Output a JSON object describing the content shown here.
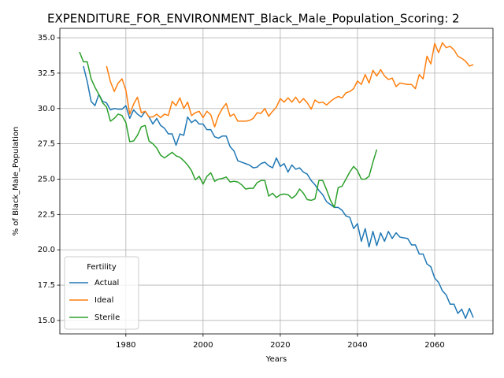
{
  "chart_data": {
    "type": "line",
    "title": "EXPENDITURE_FOR_ENVIRONMENT_Black_Male_Population_Scoring: 2",
    "x_label": "Years",
    "y_label": "% of Black_Male_Population",
    "legend_title": "Fertility",
    "legend": "lower left",
    "grid": true,
    "x": [
      1968,
      1969,
      1970,
      1971,
      1972,
      1973,
      1974,
      1975,
      1976,
      1977,
      1978,
      1979,
      1980,
      1981,
      1982,
      1983,
      1984,
      1985,
      1986,
      1987,
      1988,
      1989,
      1990,
      1991,
      1992,
      1993,
      1994,
      1995,
      1996,
      1997,
      1998,
      1999,
      2000,
      2001,
      2002,
      2003,
      2004,
      2005,
      2006,
      2007,
      2008,
      2009,
      2010,
      2011,
      2012,
      2013,
      2014,
      2015,
      2016,
      2017,
      2018,
      2019,
      2020,
      2021,
      2022,
      2023,
      2024,
      2025,
      2026,
      2027,
      2028,
      2029,
      2030,
      2031,
      2032,
      2033,
      2034,
      2035,
      2036,
      2037,
      2038,
      2039,
      2040,
      2041,
      2042,
      2043,
      2044,
      2045,
      2046,
      2047,
      2048,
      2049,
      2050,
      2051,
      2052,
      2053,
      2054,
      2055,
      2056,
      2057,
      2058,
      2059,
      2060,
      2061,
      2062,
      2063,
      2064,
      2065,
      2066,
      2067,
      2068,
      2069,
      2070
    ],
    "series": [
      {
        "name": "Actual",
        "color": "#1f77b4",
        "values": [
          null,
          33.0,
          31.9,
          30.5,
          30.2,
          31.0,
          30.5,
          30.4,
          29.9,
          30.0,
          29.95,
          29.95,
          30.2,
          29.3,
          29.9,
          29.6,
          29.4,
          29.8,
          29.4,
          28.9,
          29.3,
          28.8,
          28.6,
          28.2,
          28.2,
          27.4,
          28.2,
          28.1,
          29.4,
          29.0,
          29.2,
          28.9,
          28.9,
          28.5,
          28.5,
          28.0,
          27.9,
          28.05,
          28.05,
          27.3,
          27.0,
          26.3,
          26.2,
          26.1,
          26.0,
          25.8,
          25.85,
          26.1,
          26.2,
          25.95,
          25.8,
          26.5,
          25.9,
          26.1,
          25.5,
          26.0,
          25.7,
          25.8,
          25.5,
          25.35,
          24.9,
          24.6,
          24.2,
          23.9,
          23.4,
          23.2,
          23.0,
          23.0,
          22.8,
          22.4,
          22.3,
          21.5,
          21.85,
          20.6,
          21.5,
          20.2,
          21.3,
          20.3,
          21.2,
          20.6,
          21.3,
          20.8,
          21.2,
          20.9,
          20.85,
          20.8,
          20.35,
          20.35,
          19.7,
          19.7,
          19.0,
          18.8,
          18.0,
          17.7,
          17.1,
          16.8,
          16.15,
          16.15,
          15.5,
          15.8,
          15.15,
          15.85,
          15.2
        ]
      },
      {
        "name": "Ideal",
        "color": "#ff7f0e",
        "values": [
          null,
          null,
          null,
          null,
          null,
          null,
          null,
          33.0,
          31.9,
          31.2,
          31.8,
          32.1,
          31.3,
          29.6,
          30.3,
          30.8,
          29.7,
          29.8,
          29.4,
          29.4,
          29.6,
          29.35,
          29.6,
          29.5,
          30.5,
          30.2,
          30.75,
          30.0,
          30.45,
          29.5,
          29.7,
          29.8,
          29.35,
          29.8,
          29.55,
          28.7,
          29.5,
          30.0,
          30.35,
          29.45,
          29.6,
          29.1,
          29.1,
          29.1,
          29.15,
          29.3,
          29.7,
          29.65,
          30.0,
          29.45,
          29.8,
          30.1,
          30.7,
          30.45,
          30.75,
          30.45,
          30.8,
          30.4,
          30.7,
          30.4,
          29.95,
          30.6,
          30.4,
          30.45,
          30.25,
          30.5,
          30.7,
          30.85,
          30.75,
          31.1,
          31.2,
          31.4,
          31.95,
          31.7,
          32.4,
          31.8,
          32.7,
          32.3,
          32.75,
          32.3,
          32.05,
          32.15,
          31.55,
          31.8,
          31.75,
          31.7,
          31.7,
          31.4,
          32.4,
          32.1,
          33.7,
          33.15,
          34.6,
          33.95,
          34.65,
          34.3,
          34.4,
          34.15,
          33.7,
          33.55,
          33.35,
          33.0,
          33.1
        ]
      },
      {
        "name": "Sterile",
        "color": "#2ca02c",
        "values": [
          34.0,
          33.3,
          33.3,
          32.1,
          31.5,
          31.0,
          30.4,
          30.1,
          29.1,
          29.3,
          29.6,
          29.5,
          29.0,
          27.65,
          27.7,
          28.1,
          28.7,
          28.8,
          27.7,
          27.5,
          27.2,
          26.7,
          26.5,
          26.7,
          26.9,
          26.65,
          26.55,
          26.3,
          26.0,
          25.6,
          24.95,
          25.2,
          24.65,
          25.2,
          25.45,
          24.85,
          25.0,
          25.05,
          25.15,
          24.8,
          24.85,
          24.8,
          24.6,
          24.3,
          24.35,
          24.35,
          24.75,
          24.9,
          24.9,
          23.8,
          24.0,
          23.7,
          23.9,
          23.95,
          23.9,
          23.65,
          23.85,
          24.3,
          24.0,
          23.55,
          23.5,
          23.6,
          24.9,
          24.9,
          24.25,
          23.5,
          23.0,
          24.4,
          24.5,
          25.0,
          25.5,
          25.9,
          25.6,
          25.0,
          25.0,
          25.2,
          26.2,
          27.1,
          null,
          null,
          null,
          null,
          null,
          null,
          null,
          null,
          null,
          null,
          null,
          null,
          null,
          null,
          null,
          null,
          null,
          null,
          null,
          null,
          null,
          null,
          null,
          null,
          null
        ]
      }
    ],
    "xlim": [
      1962.9,
      2075.1
    ],
    "xticks": [
      1980,
      2000,
      2020,
      2040,
      2060
    ],
    "ylim": [
      14.05,
      35.67
    ],
    "yticks": [
      {
        "value": 15,
        "label": "15.0"
      },
      {
        "value": 17.5,
        "label": "17.5"
      },
      {
        "value": 20,
        "label": "20.0"
      },
      {
        "value": 22.5,
        "label": "22.5"
      },
      {
        "value": 25,
        "label": "25.0"
      },
      {
        "value": 27.5,
        "label": "27.5"
      },
      {
        "value": 30,
        "label": "30.0"
      },
      {
        "value": 32.5,
        "label": "32.5"
      },
      {
        "value": 35,
        "label": "35.0"
      }
    ]
  }
}
